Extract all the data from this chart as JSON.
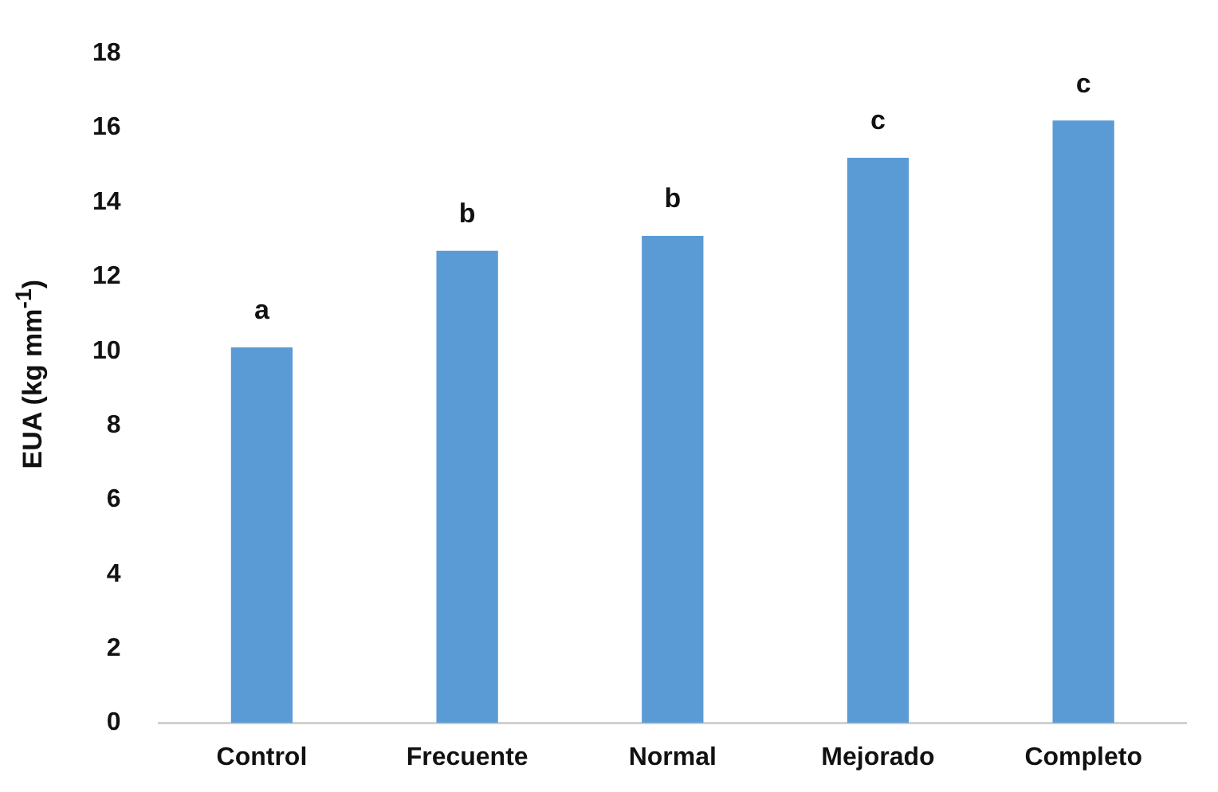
{
  "chart_data": {
    "type": "bar",
    "ylabel": "EUA (kg mm$^{-1}$)",
    "categories": [
      "Control",
      "Frecuente",
      "Normal",
      "Mejorado",
      "Completo"
    ],
    "values": [
      10.1,
      12.7,
      13.1,
      15.2,
      16.2
    ],
    "color": "#5b9bd5",
    "ylim": [
      0,
      18
    ],
    "yticks": [
      0,
      2,
      4,
      6,
      8,
      10,
      12,
      14,
      16,
      18
    ],
    "grid": false,
    "legend": false,
    "annotations": [
      {
        "text": "a",
        "x": "Control",
        "y": 10.1
      },
      {
        "text": "b",
        "x": "Frecuente",
        "y": 12.7
      },
      {
        "text": "b",
        "x": "Normal",
        "y": 13.1
      },
      {
        "text": "c",
        "x": "Mejorado",
        "y": 15.2
      },
      {
        "text": "c",
        "x": "Completo",
        "y": 16.2
      }
    ]
  }
}
